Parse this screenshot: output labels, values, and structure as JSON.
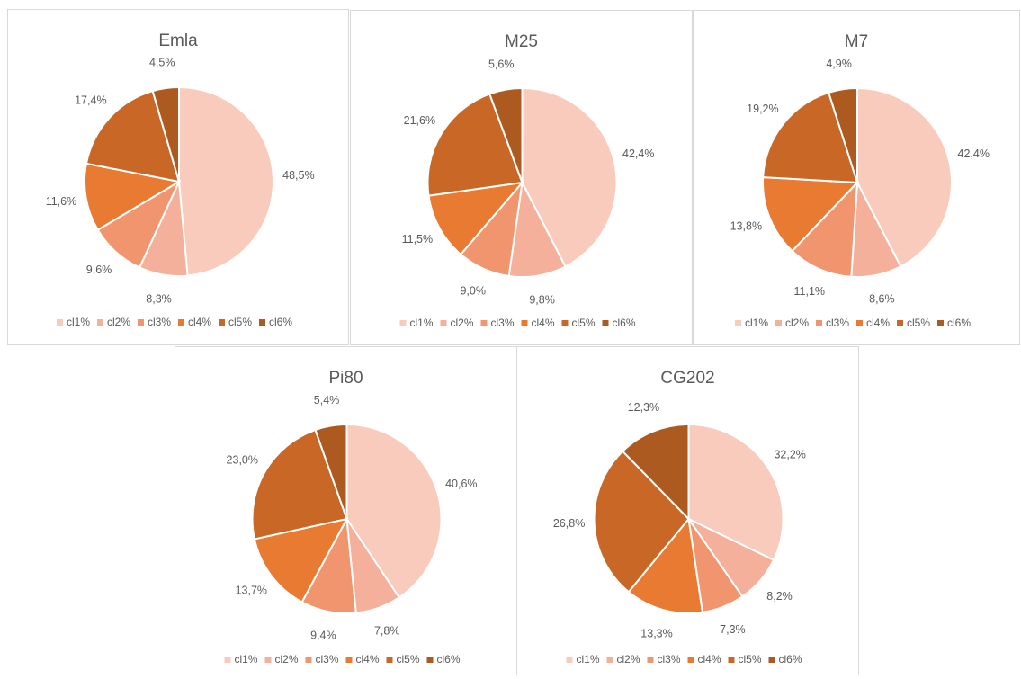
{
  "chart_data": [
    {
      "type": "pie",
      "title": "Emla",
      "categories": [
        "cl1%",
        "cl2%",
        "cl3%",
        "cl4%",
        "cl5%",
        "cl6%"
      ],
      "values": [
        48.5,
        8.3,
        9.6,
        11.6,
        17.4,
        4.5
      ],
      "value_labels": [
        "48,5%",
        "8,3%",
        "9,6%",
        "11,6%",
        "17,4%",
        "4,5%"
      ],
      "colors": [
        "#f8cbbc",
        "#f4b09a",
        "#f1956e",
        "#e87a32",
        "#c96726",
        "#ad5a20"
      ]
    },
    {
      "type": "pie",
      "title": "M25",
      "categories": [
        "cl1%",
        "cl2%",
        "cl3%",
        "cl4%",
        "cl5%",
        "cl6%"
      ],
      "values": [
        42.4,
        9.8,
        9.0,
        11.5,
        21.6,
        5.6
      ],
      "value_labels": [
        "42,4%",
        "9,8%",
        "9,0%",
        "11,5%",
        "21,6%",
        "5,6%"
      ],
      "colors": [
        "#f8cbbc",
        "#f4b09a",
        "#f1956e",
        "#e87a32",
        "#c96726",
        "#ad5a20"
      ]
    },
    {
      "type": "pie",
      "title": "M7",
      "categories": [
        "cl1%",
        "cl2%",
        "cl3%",
        "cl4%",
        "cl5%",
        "cl6%"
      ],
      "values": [
        42.4,
        8.6,
        11.1,
        13.8,
        19.2,
        4.9
      ],
      "value_labels": [
        "42,4%",
        "8,6%",
        "11,1%",
        "13,8%",
        "19,2%",
        "4,9%"
      ],
      "colors": [
        "#f8cbbc",
        "#f4b09a",
        "#f1956e",
        "#e87a32",
        "#c96726",
        "#ad5a20"
      ]
    },
    {
      "type": "pie",
      "title": "Pi80",
      "categories": [
        "cl1%",
        "cl2%",
        "cl3%",
        "cl4%",
        "cl5%",
        "cl6%"
      ],
      "values": [
        40.6,
        7.8,
        9.4,
        13.7,
        23.0,
        5.4
      ],
      "value_labels": [
        "40,6%",
        "7,8%",
        "9,4%",
        "13,7%",
        "23,0%",
        "5,4%"
      ],
      "colors": [
        "#f8cbbc",
        "#f4b09a",
        "#f1956e",
        "#e87a32",
        "#c96726",
        "#ad5a20"
      ]
    },
    {
      "type": "pie",
      "title": "CG202",
      "categories": [
        "cl1%",
        "cl2%",
        "cl3%",
        "cl4%",
        "cl5%",
        "cl6%"
      ],
      "values": [
        32.2,
        8.2,
        7.3,
        13.3,
        26.8,
        12.3
      ],
      "value_labels": [
        "32,2%",
        "8,2%",
        "7,3%",
        "13,3%",
        "26,8%",
        "12,3%"
      ],
      "colors": [
        "#f8cbbc",
        "#f4b09a",
        "#f1956e",
        "#e87a32",
        "#c96726",
        "#ad5a20"
      ]
    }
  ]
}
